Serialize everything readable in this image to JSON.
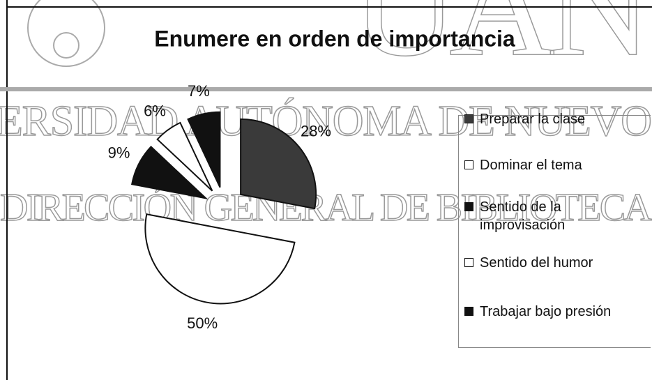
{
  "watermark": [
    "UAN",
    "ERSIDAD AUTÓNOMA DE NUEVO",
    "DIRECCIÓN GENERAL DE BIBLIOTECA"
  ],
  "chart_data": {
    "type": "pie",
    "title": "Enumere en orden de importancia",
    "categories": [
      "Preparar la clase",
      "Dominar el tema",
      "Sentido de la improvisación",
      "Sentido del humor",
      "Trabajar bajo presión"
    ],
    "values": [
      28,
      50,
      9,
      6,
      7
    ],
    "value_labels": [
      "28%",
      "50%",
      "9%",
      "6%",
      "7%"
    ],
    "colors": [
      "#3a3a3a",
      "#ffffff",
      "#111111",
      "#ffffff",
      "#111111"
    ],
    "legend": "right"
  }
}
